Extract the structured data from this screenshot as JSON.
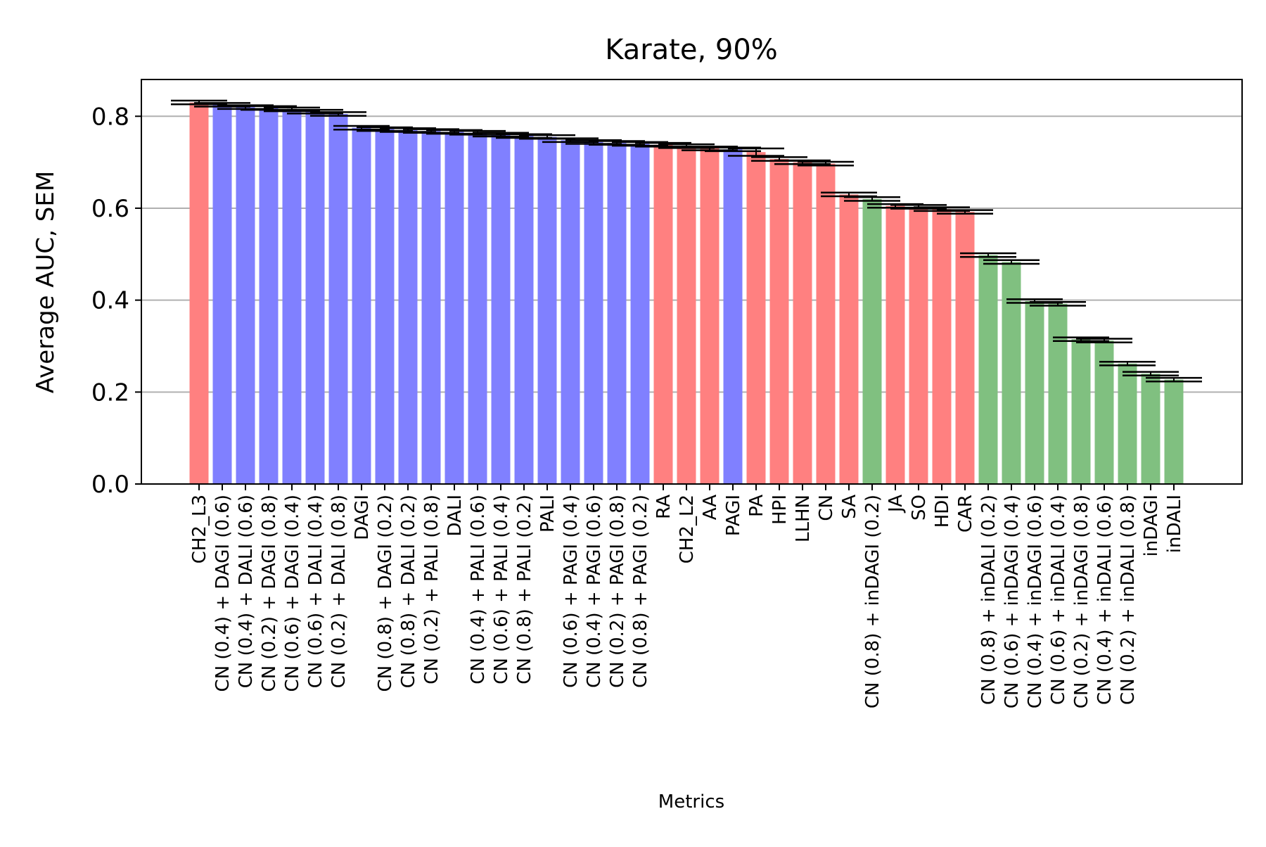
{
  "chart_data": {
    "type": "bar",
    "title": "Karate, 90%",
    "xlabel": "Metrics",
    "ylabel": "Average AUC, SEM",
    "ylim": [
      0,
      0.88
    ],
    "yticks": [
      0.0,
      0.2,
      0.4,
      0.6,
      0.8
    ],
    "ytick_labels": [
      "0.0",
      "0.2",
      "0.4",
      "0.6",
      "0.8"
    ],
    "grid": "y",
    "colors": {
      "red": "#ff8080",
      "blue": "#8080ff",
      "green": "#80c080",
      "error": "#000000",
      "grid": "#b0b0b0"
    },
    "categories": [
      "CH2_L3",
      "CN (0.4) + DAGI (0.6)",
      "CN (0.4) + DALI (0.6)",
      "CN (0.2) + DAGI (0.8)",
      "CN (0.6) + DAGI (0.4)",
      "CN (0.6) + DALI (0.4)",
      "CN (0.2) + DALI (0.8)",
      "DAGI",
      "CN (0.8) + DAGI (0.2)",
      "CN (0.8) + DALI (0.2)",
      "CN (0.2) + PALI (0.8)",
      "DALI",
      "CN (0.4) + PALI (0.6)",
      "CN (0.6) + PALI (0.4)",
      "CN (0.8) + PALI (0.2)",
      "PALI",
      "CN (0.6) + PAGI (0.4)",
      "CN (0.4) + PAGI (0.6)",
      "CN (0.2) + PAGI (0.8)",
      "CN (0.8) + PAGI (0.2)",
      "RA",
      "CH2_L2",
      "AA",
      "PAGI",
      "PA",
      "HPI",
      "LLHN",
      "CN",
      "SA",
      "CN (0.8) + inDAGI (0.2)",
      "JA",
      "SO",
      "HDI",
      "CAR",
      "CN (0.8) + inDALI (0.2)",
      "CN (0.6) + inDAGI (0.4)",
      "CN (0.4) + inDAGI (0.6)",
      "CN (0.6) + inDALI (0.4)",
      "CN (0.2) + inDAGI (0.8)",
      "CN (0.4) + inDALI (0.6)",
      "CN (0.2) + inDALI (0.8)",
      "inDAGI",
      "inDALI"
    ],
    "values": [
      0.83,
      0.825,
      0.82,
      0.818,
      0.815,
      0.81,
      0.805,
      0.775,
      0.772,
      0.77,
      0.768,
      0.766,
      0.764,
      0.76,
      0.757,
      0.755,
      0.748,
      0.744,
      0.742,
      0.74,
      0.738,
      0.735,
      0.73,
      0.728,
      0.722,
      0.707,
      0.7,
      0.697,
      0.63,
      0.62,
      0.605,
      0.603,
      0.598,
      0.592,
      0.498,
      0.483,
      0.398,
      0.392,
      0.315,
      0.312,
      0.262,
      0.24,
      0.227
    ],
    "errors": [
      0.004,
      0.004,
      0.004,
      0.004,
      0.004,
      0.004,
      0.004,
      0.004,
      0.004,
      0.004,
      0.004,
      0.004,
      0.004,
      0.004,
      0.004,
      0.004,
      0.004,
      0.004,
      0.004,
      0.004,
      0.004,
      0.004,
      0.004,
      0.004,
      0.008,
      0.004,
      0.004,
      0.004,
      0.004,
      0.004,
      0.004,
      0.004,
      0.004,
      0.004,
      0.004,
      0.004,
      0.004,
      0.004,
      0.004,
      0.004,
      0.004,
      0.004,
      0.004
    ],
    "bar_colors": [
      "red",
      "blue",
      "blue",
      "blue",
      "blue",
      "blue",
      "blue",
      "blue",
      "blue",
      "blue",
      "blue",
      "blue",
      "blue",
      "blue",
      "blue",
      "blue",
      "blue",
      "blue",
      "blue",
      "blue",
      "red",
      "red",
      "red",
      "blue",
      "red",
      "red",
      "red",
      "red",
      "red",
      "green",
      "red",
      "red",
      "red",
      "red",
      "green",
      "green",
      "green",
      "green",
      "green",
      "green",
      "green",
      "green",
      "green"
    ]
  }
}
